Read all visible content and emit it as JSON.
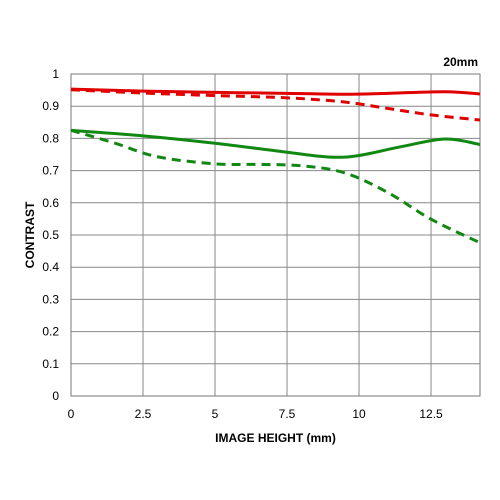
{
  "chart_data": {
    "type": "line",
    "title": "20mm",
    "xlabel": "IMAGE HEIGHT (mm)",
    "ylabel": "CONTRAST",
    "xlim": [
      0,
      14.2
    ],
    "ylim": [
      0,
      1
    ],
    "x_ticks": [
      0,
      2.5,
      5,
      7.5,
      10,
      12.5
    ],
    "x_tick_labels": [
      "0",
      "2.5",
      "5",
      "7.5",
      "10",
      "12.5"
    ],
    "y_ticks": [
      0,
      0.1,
      0.2,
      0.3,
      0.4,
      0.5,
      0.6,
      0.7,
      0.8,
      0.9,
      1
    ],
    "y_tick_labels": [
      "0",
      "0.1",
      "0.2",
      "0.3",
      "0.4",
      "0.5",
      "0.6",
      "0.7",
      "0.8",
      "0.9",
      "1"
    ],
    "grid": true,
    "legend": "none",
    "series": [
      {
        "color": "#e00000",
        "dash": "solid",
        "points": [
          [
            0,
            0.953
          ],
          [
            2.5,
            0.947
          ],
          [
            5,
            0.943
          ],
          [
            7.5,
            0.94
          ],
          [
            9.5,
            0.937
          ],
          [
            11,
            0.94
          ],
          [
            13,
            0.945
          ],
          [
            14.2,
            0.938
          ]
        ]
      },
      {
        "color": "#e00000",
        "dash": "dashed",
        "points": [
          [
            0,
            0.951
          ],
          [
            2.5,
            0.941
          ],
          [
            5,
            0.933
          ],
          [
            7.5,
            0.926
          ],
          [
            9.5,
            0.913
          ],
          [
            11,
            0.893
          ],
          [
            12.5,
            0.873
          ],
          [
            14.2,
            0.857
          ]
        ]
      },
      {
        "color": "#118811",
        "dash": "solid",
        "points": [
          [
            0,
            0.825
          ],
          [
            2.5,
            0.808
          ],
          [
            5,
            0.785
          ],
          [
            7.5,
            0.757
          ],
          [
            9,
            0.742
          ],
          [
            10,
            0.747
          ],
          [
            11.5,
            0.775
          ],
          [
            13,
            0.798
          ],
          [
            14.2,
            0.781
          ]
        ]
      },
      {
        "color": "#118811",
        "dash": "dashed",
        "points": [
          [
            0,
            0.825
          ],
          [
            1.5,
            0.786
          ],
          [
            3,
            0.743
          ],
          [
            5,
            0.721
          ],
          [
            6.5,
            0.719
          ],
          [
            8,
            0.715
          ],
          [
            9.5,
            0.693
          ],
          [
            11,
            0.632
          ],
          [
            12.5,
            0.549
          ],
          [
            14.2,
            0.476
          ]
        ]
      }
    ]
  }
}
